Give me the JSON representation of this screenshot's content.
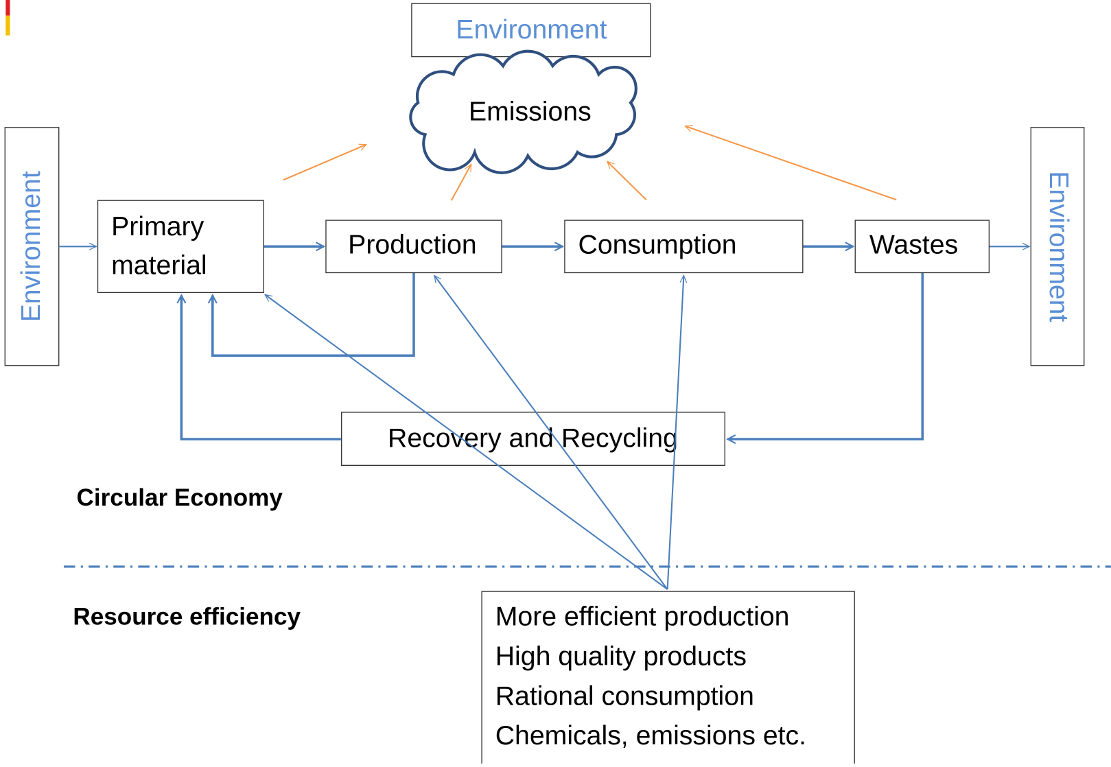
{
  "environment": {
    "top": "Environment",
    "left": "Environment",
    "right": "Environment"
  },
  "emissions": "Emissions",
  "nodes": {
    "primary_material": [
      "Primary",
      "material"
    ],
    "production": "Production",
    "consumption": "Consumption",
    "wastes": "Wastes",
    "recovery": "Recovery and Recycling"
  },
  "sections": {
    "circular": "Circular Economy",
    "efficiency": "Resource efficiency"
  },
  "measures": [
    "More efficient production",
    "High quality products",
    "Rational consumption",
    "Chemicals, emissions etc."
  ]
}
